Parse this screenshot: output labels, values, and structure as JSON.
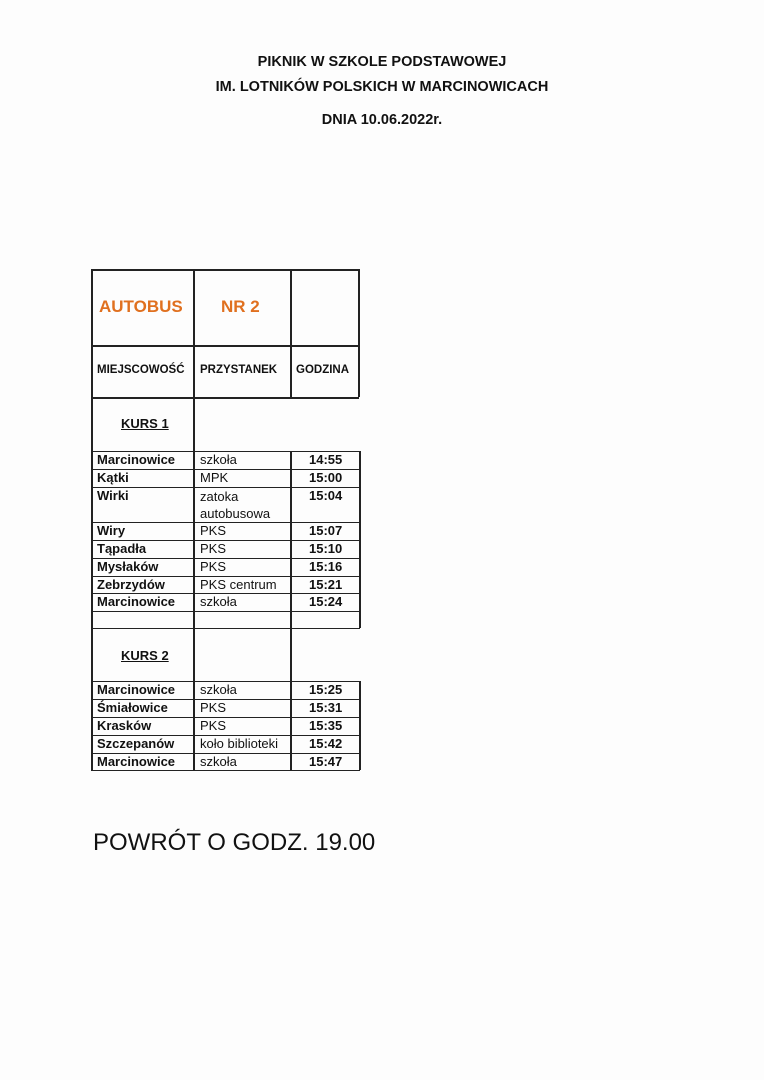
{
  "title": {
    "line1": "PIKNIK W  SZKOLE PODSTAWOWEJ",
    "line2": "IM. LOTNIKÓW POLSKICH W MARCINOWICACH",
    "line3": "DNIA  10.06.2022r."
  },
  "table": {
    "bus_label": "AUTOBUS",
    "bus_number": "NR 2",
    "accent_color": "#e0701f",
    "headers": [
      "MIEJSCOWOŚĆ",
      "PRZYSTANEK",
      "GODZINA"
    ],
    "courses": [
      {
        "label": "KURS 1",
        "rows": [
          {
            "place": "Marcinowice",
            "stop": "szkoła",
            "time": "14:55"
          },
          {
            "place": "Kątki",
            "stop": "MPK",
            "time": "15:00"
          },
          {
            "place": "Wirki",
            "stop": "zatoka autobusowa",
            "time": "15:04"
          },
          {
            "place": "Wiry",
            "stop": "PKS",
            "time": "15:07"
          },
          {
            "place": "Tąpadła",
            "stop": "PKS",
            "time": "15:10"
          },
          {
            "place": "Mysłaków",
            "stop": "PKS",
            "time": "15:16"
          },
          {
            "place": "Zebrzydów",
            "stop": "PKS centrum",
            "time": "15:21"
          },
          {
            "place": "Marcinowice",
            "stop": "szkoła",
            "time": "15:24"
          }
        ]
      },
      {
        "label": "KURS 2",
        "rows": [
          {
            "place": "Marcinowice",
            "stop": "szkoła",
            "time": "15:25"
          },
          {
            "place": "Śmiałowice",
            "stop": "PKS",
            "time": "15:31"
          },
          {
            "place": "Krasków",
            "stop": "PKS",
            "time": "15:35"
          },
          {
            "place": "Szczepanów",
            "stop": "koło biblioteki",
            "time": "15:42"
          },
          {
            "place": "Marcinowice",
            "stop": "szkoła",
            "time": "15:47"
          }
        ]
      }
    ]
  },
  "footer": "POWRÓT O GODZ. 19.00"
}
